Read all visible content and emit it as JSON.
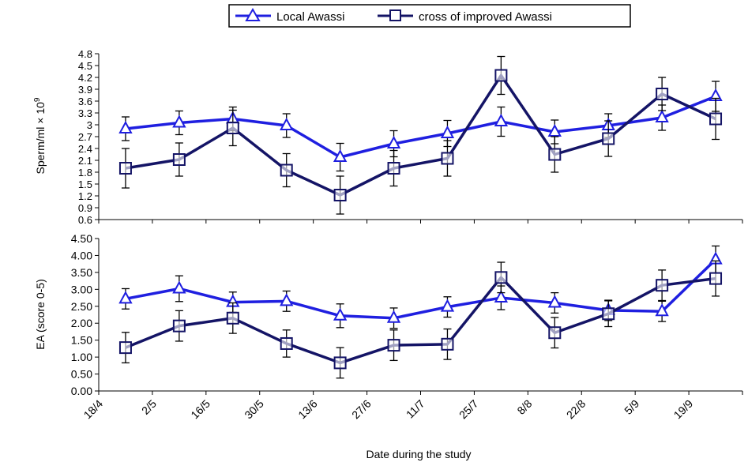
{
  "legend": {
    "items": [
      {
        "label": "Local Awassi",
        "color": "#1f1fe0",
        "marker": "triangle"
      },
      {
        "label": "cross of improved Awassi",
        "color": "#141466",
        "marker": "square"
      }
    ]
  },
  "x_axis": {
    "title": "Date during the study",
    "tick_labels": [
      "18/4",
      "2/5",
      "16/5",
      "30/5",
      "13/6",
      "27/6",
      "11/7",
      "25/7",
      "8/8",
      "22/8",
      "5/9",
      "19/9"
    ]
  },
  "chart_data": [
    {
      "type": "line",
      "ylabel": "Sperm/ml × 10",
      "ylabel_superscript": "9",
      "ylim": [
        0.6,
        4.8
      ],
      "yticks": [
        "0.6",
        "0.9",
        "1.2",
        "1.5",
        "1.8",
        "2.1",
        "2.4",
        "2.7",
        "3",
        "3.3",
        "3.6",
        "3.9",
        "4.2",
        "4.5",
        "4.8"
      ],
      "grid": false,
      "x_positions": [
        0.5,
        1.5,
        2.5,
        3.5,
        4.5,
        5.5,
        6.5,
        7.5,
        8.5,
        9.5,
        10.5,
        11.5
      ],
      "series": [
        {
          "name": "Local Awassi",
          "values": [
            2.9,
            3.05,
            3.15,
            2.98,
            2.18,
            2.52,
            2.78,
            3.08,
            2.82,
            2.98,
            3.18,
            3.72
          ],
          "errors": [
            0.3,
            0.3,
            0.3,
            0.3,
            0.35,
            0.33,
            0.33,
            0.37,
            0.3,
            0.3,
            0.32,
            0.38
          ]
        },
        {
          "name": "cross of improved Awassi",
          "values": [
            1.9,
            2.12,
            2.92,
            1.85,
            1.22,
            1.9,
            2.15,
            4.25,
            2.25,
            2.65,
            3.78,
            3.15
          ],
          "errors": [
            0.5,
            0.42,
            0.45,
            0.42,
            0.48,
            0.45,
            0.45,
            0.48,
            0.45,
            0.45,
            0.42,
            0.52
          ]
        }
      ]
    },
    {
      "type": "line",
      "ylabel": "EA (score 0-5)",
      "ylim": [
        0,
        4.5
      ],
      "yticks": [
        "0.00",
        "0.50",
        "1.00",
        "1.50",
        "2.00",
        "2.50",
        "3.00",
        "3.50",
        "4.00",
        "4.50"
      ],
      "grid": false,
      "x_positions": [
        0.5,
        1.5,
        2.5,
        3.5,
        4.5,
        5.5,
        6.5,
        7.5,
        8.5,
        9.5,
        10.5,
        11.5
      ],
      "series": [
        {
          "name": "Local Awassi",
          "values": [
            2.72,
            3.02,
            2.62,
            2.65,
            2.22,
            2.15,
            2.48,
            2.75,
            2.6,
            2.38,
            2.35,
            3.88
          ],
          "errors": [
            0.3,
            0.38,
            0.3,
            0.3,
            0.35,
            0.3,
            0.3,
            0.35,
            0.3,
            0.3,
            0.3,
            0.4
          ]
        },
        {
          "name": "cross of improved Awassi",
          "values": [
            1.28,
            1.92,
            2.15,
            1.4,
            0.83,
            1.35,
            1.38,
            3.35,
            1.72,
            2.28,
            3.12,
            3.32
          ],
          "errors": [
            0.45,
            0.45,
            0.45,
            0.4,
            0.45,
            0.45,
            0.45,
            0.45,
            0.45,
            0.38,
            0.45,
            0.52
          ]
        }
      ]
    }
  ]
}
